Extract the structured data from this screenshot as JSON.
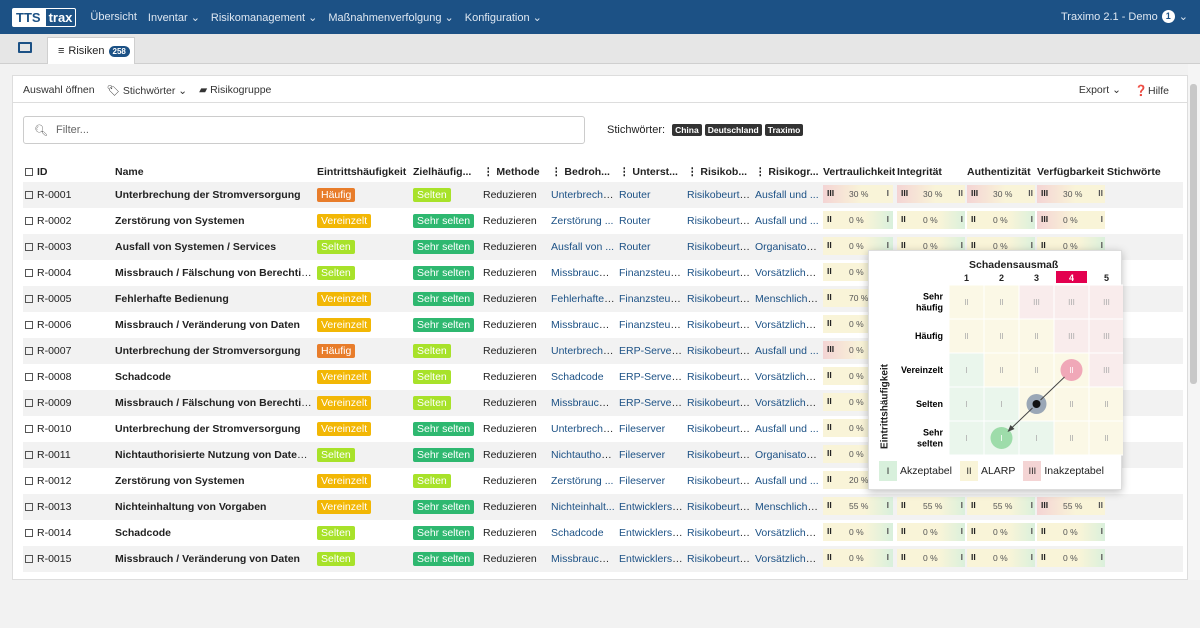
{
  "nav": {
    "logo_tts": "TTS",
    "logo_trax": "trax",
    "items": [
      "Übersicht",
      "Inventar ⌄",
      "Risikomanagement ⌄",
      "Maßnahmenverfolgung ⌄",
      "Konfiguration ⌄"
    ],
    "right_label": "Traximo 2.1 - Demo",
    "right_badge": "1"
  },
  "tabs": {
    "risk_label": "Risiken",
    "risk_count": "258"
  },
  "toolbar": {
    "open_selection": "Auswahl öffnen",
    "keywords": "Stichwörter",
    "risk_group": "Risikogruppe",
    "export": "Export",
    "help": "Hilfe"
  },
  "filter": {
    "placeholder": "Filter..."
  },
  "tags": {
    "label": "Stichwörter:",
    "items": [
      "China",
      "Deutschland",
      "Traximo"
    ]
  },
  "columns": [
    "ID",
    "Name",
    "Eintrittshäufigkeit",
    "Zielhäufig...",
    "Methode",
    "Bedroh...",
    "Unterst...",
    "Risikob...",
    "Risikogr...",
    "Vertraulichkeit",
    "Integrität",
    "Authentizität",
    "Verfügbarkeit",
    "Stichwörte"
  ],
  "rows": [
    {
      "id": "R-0001",
      "name": "Unterbrechung der Stromversorgung",
      "eh": "Häufig",
      "eh_cls": "f-haeufig",
      "zh": "Selten",
      "zh_cls": "f-selten",
      "method": "Reduzieren",
      "threat": "Unterbrechu...",
      "asset": "Router",
      "rb": "Risikobeurte...",
      "rg": "Ausfall und ...",
      "v": [
        "III",
        "30 %",
        "I"
      ],
      "i": [
        "III",
        "30 %",
        "II"
      ],
      "a": [
        "III",
        "30 %",
        "II"
      ],
      "f": [
        "III",
        "30 %",
        "II"
      ]
    },
    {
      "id": "R-0002",
      "name": "Zerstörung von Systemen",
      "eh": "Vereinzelt",
      "eh_cls": "f-vereinzelt",
      "zh": "Sehr selten",
      "zh_cls": "f-sehrselten",
      "method": "Reduzieren",
      "threat": "Zerstörung ...",
      "asset": "Router",
      "rb": "Risikobeurte...",
      "rg": "Ausfall und ...",
      "v": [
        "II",
        "0 %",
        "I"
      ],
      "i": [
        "II",
        "0 %",
        "I"
      ],
      "a": [
        "II",
        "0 %",
        "I"
      ],
      "f": [
        "III",
        "0 %",
        "I"
      ]
    },
    {
      "id": "R-0003",
      "name": "Ausfall von Systemen / Services",
      "eh": "Selten",
      "eh_cls": "f-selten",
      "zh": "Sehr selten",
      "zh_cls": "f-sehrselten",
      "method": "Reduzieren",
      "threat": "Ausfall von ...",
      "asset": "Router",
      "rb": "Risikobeurte...",
      "rg": "Organisatori...",
      "v": [
        "II",
        "0 %",
        "I"
      ],
      "i": [
        "II",
        "0 %",
        "I"
      ],
      "a": [
        "II",
        "0 %",
        "I"
      ],
      "f": [
        "II",
        "0 %",
        "I"
      ]
    },
    {
      "id": "R-0004",
      "name": "Missbrauch / Fälschung von Berechtigu...",
      "eh": "Selten",
      "eh_cls": "f-selten",
      "zh": "Sehr selten",
      "zh_cls": "f-sehrselten",
      "method": "Reduzieren",
      "threat": "Missbrauch ...",
      "asset": "Finanzsteue...",
      "rb": "Risikobeurte...",
      "rg": "Vorsätzliche...",
      "v": [
        "II",
        "0 %",
        ""
      ],
      "i": [
        "",
        "",
        ""
      ],
      "a": [
        "",
        "",
        ""
      ],
      "f": [
        "",
        "",
        ""
      ]
    },
    {
      "id": "R-0005",
      "name": "Fehlerhafte Bedienung",
      "eh": "Vereinzelt",
      "eh_cls": "f-vereinzelt",
      "zh": "Sehr selten",
      "zh_cls": "f-sehrselten",
      "method": "Reduzieren",
      "threat": "Fehlerhafte ...",
      "asset": "Finanzsteue...",
      "rb": "Risikobeurte...",
      "rg": "Menschliche...",
      "v": [
        "II",
        "70 %",
        ""
      ],
      "i": [
        "",
        "",
        ""
      ],
      "a": [
        "",
        "",
        ""
      ],
      "f": [
        "",
        "",
        ""
      ]
    },
    {
      "id": "R-0006",
      "name": "Missbrauch / Veränderung von Daten",
      "eh": "Vereinzelt",
      "eh_cls": "f-vereinzelt",
      "zh": "Sehr selten",
      "zh_cls": "f-sehrselten",
      "method": "Reduzieren",
      "threat": "Missbrauch ...",
      "asset": "Finanzsteue...",
      "rb": "Risikobeurte...",
      "rg": "Vorsätzliche...",
      "v": [
        "II",
        "0 %",
        ""
      ],
      "i": [
        "",
        "",
        ""
      ],
      "a": [
        "",
        "",
        ""
      ],
      "f": [
        "",
        "",
        ""
      ]
    },
    {
      "id": "R-0007",
      "name": "Unterbrechung der Stromversorgung",
      "eh": "Häufig",
      "eh_cls": "f-haeufig",
      "zh": "Selten",
      "zh_cls": "f-selten",
      "method": "Reduzieren",
      "threat": "Unterbrechu...",
      "asset": "ERP-Server (...",
      "rb": "Risikobeurte...",
      "rg": "Ausfall und ...",
      "v": [
        "III",
        "0 %",
        ""
      ],
      "i": [
        "",
        "",
        ""
      ],
      "a": [
        "",
        "",
        ""
      ],
      "f": [
        "",
        "",
        ""
      ]
    },
    {
      "id": "R-0008",
      "name": "Schadcode",
      "eh": "Vereinzelt",
      "eh_cls": "f-vereinzelt",
      "zh": "Selten",
      "zh_cls": "f-selten",
      "method": "Reduzieren",
      "threat": "Schadcode",
      "asset": "ERP-Server (...",
      "rb": "Risikobeurte...",
      "rg": "Vorsätzliche...",
      "v": [
        "II",
        "0 %",
        ""
      ],
      "i": [
        "",
        "",
        ""
      ],
      "a": [
        "",
        "",
        ""
      ],
      "f": [
        "",
        "",
        ""
      ]
    },
    {
      "id": "R-0009",
      "name": "Missbrauch / Fälschung von Berechtigu...",
      "eh": "Vereinzelt",
      "eh_cls": "f-vereinzelt",
      "zh": "Selten",
      "zh_cls": "f-selten",
      "method": "Reduzieren",
      "threat": "Missbrauch ...",
      "asset": "ERP-Server (...",
      "rb": "Risikobeurte...",
      "rg": "Vorsätzliche...",
      "v": [
        "II",
        "0 %",
        ""
      ],
      "i": [
        "",
        "",
        ""
      ],
      "a": [
        "",
        "",
        ""
      ],
      "f": [
        "",
        "",
        ""
      ]
    },
    {
      "id": "R-0010",
      "name": "Unterbrechung der Stromversorgung",
      "eh": "Vereinzelt",
      "eh_cls": "f-vereinzelt",
      "zh": "Sehr selten",
      "zh_cls": "f-sehrselten",
      "method": "Reduzieren",
      "threat": "Unterbrechu...",
      "asset": "Fileserver",
      "rb": "Risikobeurte...",
      "rg": "Ausfall und ...",
      "v": [
        "II",
        "0 %",
        ""
      ],
      "i": [
        "",
        "",
        ""
      ],
      "a": [
        "",
        "",
        ""
      ],
      "f": [
        "",
        "",
        ""
      ]
    },
    {
      "id": "R-0011",
      "name": "Nichtauthorisierte Nutzung von Daten o...",
      "eh": "Selten",
      "eh_cls": "f-selten",
      "zh": "Sehr selten",
      "zh_cls": "f-sehrselten",
      "method": "Reduzieren",
      "threat": "Nichtauthori...",
      "asset": "Fileserver",
      "rb": "Risikobeurte...",
      "rg": "Organisatori...",
      "v": [
        "II",
        "0 %",
        ""
      ],
      "i": [
        "",
        "",
        ""
      ],
      "a": [
        "",
        "",
        ""
      ],
      "f": [
        "",
        "",
        ""
      ]
    },
    {
      "id": "R-0012",
      "name": "Zerstörung von Systemen",
      "eh": "Vereinzelt",
      "eh_cls": "f-vereinzelt",
      "zh": "Selten",
      "zh_cls": "f-selten",
      "method": "Reduzieren",
      "threat": "Zerstörung ...",
      "asset": "Fileserver",
      "rb": "Risikobeurte...",
      "rg": "Ausfall und ...",
      "v": [
        "II",
        "20 %",
        ""
      ],
      "i": [
        "",
        "",
        ""
      ],
      "a": [
        "",
        "",
        ""
      ],
      "f": [
        "",
        "",
        ""
      ]
    },
    {
      "id": "R-0013",
      "name": "Nichteinhaltung von Vorgaben",
      "eh": "Vereinzelt",
      "eh_cls": "f-vereinzelt",
      "zh": "Sehr selten",
      "zh_cls": "f-sehrselten",
      "method": "Reduzieren",
      "threat": "Nichteinhalt...",
      "asset": "Entwicklerse...",
      "rb": "Risikobeurte...",
      "rg": "Menschliche...",
      "v": [
        "II",
        "55 %",
        "I"
      ],
      "i": [
        "II",
        "55 %",
        "I"
      ],
      "a": [
        "II",
        "55 %",
        "I"
      ],
      "f": [
        "III",
        "55 %",
        "II"
      ]
    },
    {
      "id": "R-0014",
      "name": "Schadcode",
      "eh": "Selten",
      "eh_cls": "f-selten",
      "zh": "Sehr selten",
      "zh_cls": "f-sehrselten",
      "method": "Reduzieren",
      "threat": "Schadcode",
      "asset": "Entwicklerse...",
      "rb": "Risikobeurte...",
      "rg": "Vorsätzliche...",
      "v": [
        "II",
        "0 %",
        "I"
      ],
      "i": [
        "II",
        "0 %",
        "I"
      ],
      "a": [
        "II",
        "0 %",
        "I"
      ],
      "f": [
        "II",
        "0 %",
        "I"
      ]
    },
    {
      "id": "R-0015",
      "name": "Missbrauch / Veränderung von Daten",
      "eh": "Selten",
      "eh_cls": "f-selten",
      "zh": "Sehr selten",
      "zh_cls": "f-sehrselten",
      "method": "Reduzieren",
      "threat": "Missbrauch ...",
      "asset": "Entwicklerse...",
      "rb": "Risikobeurte...",
      "rg": "Vorsätzliche...",
      "v": [
        "II",
        "0 %",
        "I"
      ],
      "i": [
        "II",
        "0 %",
        "I"
      ],
      "a": [
        "II",
        "0 %",
        "I"
      ],
      "f": [
        "II",
        "0 %",
        "I"
      ]
    }
  ],
  "matrix": {
    "title": "Schadensausmaß",
    "yaxis": "Eintrittshäufigkeit",
    "cols": [
      "1",
      "2",
      "3",
      "4",
      "5"
    ],
    "highlight_col": "4",
    "rows": [
      "Sehr häufig",
      "Häufig",
      "Vereinzelt",
      "Selten",
      "Sehr selten"
    ],
    "cells": [
      [
        "II",
        "II",
        "III",
        "III",
        "III"
      ],
      [
        "II",
        "II",
        "II",
        "III",
        "III"
      ],
      [
        "I",
        "II",
        "II",
        "II",
        "III"
      ],
      [
        "I",
        "I",
        "II",
        "II",
        "II"
      ],
      [
        "I",
        "I",
        "I",
        "II",
        "II"
      ]
    ],
    "points": {
      "start": {
        "row": "Vereinzelt",
        "col": "4",
        "label": "II"
      },
      "mid": {
        "row": "Selten",
        "col": "3"
      },
      "target": {
        "row": "Sehr selten",
        "col": "2",
        "label": "I"
      }
    },
    "legend": [
      {
        "sym": "I",
        "label": "Akzeptabel",
        "color": "#d8f0dc"
      },
      {
        "sym": "II",
        "label": "ALARP",
        "color": "#f9f4d8"
      },
      {
        "sym": "III",
        "label": "Inakzeptabel",
        "color": "#f4d4d4"
      }
    ],
    "colors": {
      "I": "#eaf6ec",
      "II": "#fbf8e6",
      "III": "#f9ecec",
      "header_hl": "#e3004f"
    }
  }
}
